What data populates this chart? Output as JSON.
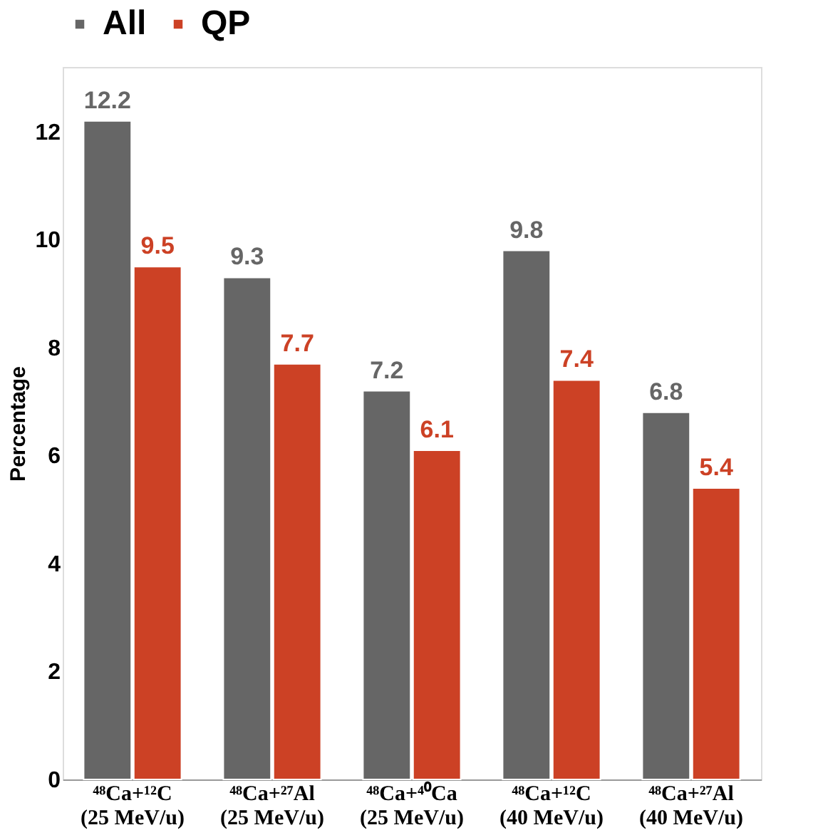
{
  "chart_data": {
    "type": "bar",
    "ylabel": "Percentage",
    "categories": [
      "⁴⁸Ca+¹²C\n(25 MeV/u)",
      "⁴⁸Ca+²⁷Al\n(25 MeV/u)",
      "⁴⁸Ca+⁴⁰Ca\n(25 MeV/u)",
      "⁴⁸Ca+¹²C\n(40 MeV/u)",
      "⁴⁸Ca+²⁷Al\n(40 MeV/u)"
    ],
    "series": [
      {
        "name": "All",
        "color": "#666666",
        "values": [
          12.2,
          9.3,
          7.2,
          9.8,
          6.8
        ]
      },
      {
        "name": "QP",
        "color": "#cc4125",
        "values": [
          9.5,
          7.7,
          6.1,
          7.4,
          5.4
        ]
      }
    ],
    "ylim": [
      0,
      13.2
    ],
    "yticks": [
      0,
      2,
      4,
      6,
      8,
      10,
      12
    ],
    "data_labels": true,
    "legend": "top",
    "grid": false
  }
}
